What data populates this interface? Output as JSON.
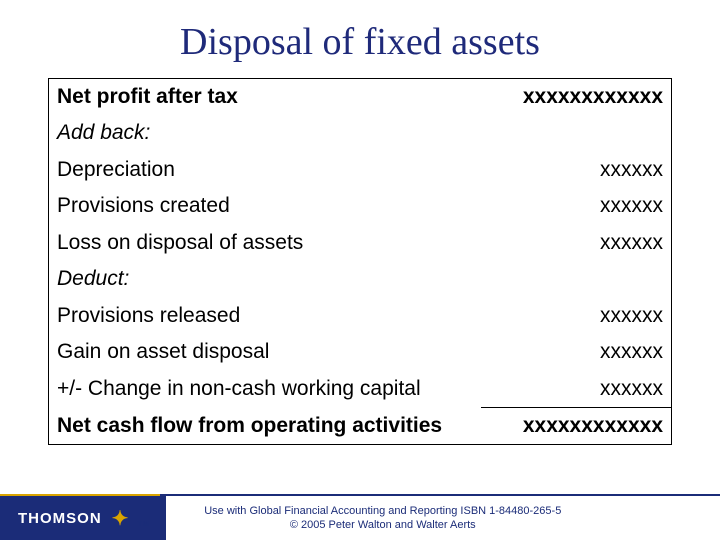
{
  "title": "Disposal of fixed assets",
  "rows": [
    {
      "label": "Net profit after tax",
      "value": "xxxxxxxxxxxx",
      "labelClass": "bold",
      "valueClass": "bold"
    },
    {
      "label": "Add back:",
      "value": "",
      "labelClass": "italic",
      "valueClass": ""
    },
    {
      "label": "Depreciation",
      "value": "xxxxxx",
      "labelClass": "",
      "valueClass": ""
    },
    {
      "label": "Provisions created",
      "value": "xxxxxx",
      "labelClass": "",
      "valueClass": ""
    },
    {
      "label": "Loss on disposal of assets",
      "value": "xxxxxx",
      "labelClass": "",
      "valueClass": ""
    },
    {
      "label": "Deduct:",
      "value": "",
      "labelClass": "italic",
      "valueClass": ""
    },
    {
      "label": "Provisions released",
      "value": "xxxxxx",
      "labelClass": "",
      "valueClass": ""
    },
    {
      "label": "Gain on asset disposal",
      "value": "xxxxxx",
      "labelClass": "",
      "valueClass": ""
    },
    {
      "label": "+/- Change in non-cash working capital",
      "value": "xxxxxx",
      "labelClass": "",
      "valueClass": ""
    },
    {
      "label": "Net cash flow from operating activities",
      "value": "xxxxxxxxxxxx",
      "labelClass": "bold",
      "valueClass": "bold underline-top"
    }
  ],
  "footer": {
    "brand": "THOMSON",
    "line1": "Use with Global Financial Accounting and Reporting ISBN 1-84480-265-5",
    "line2": "© 2005 Peter Walton and Walter Aerts"
  }
}
